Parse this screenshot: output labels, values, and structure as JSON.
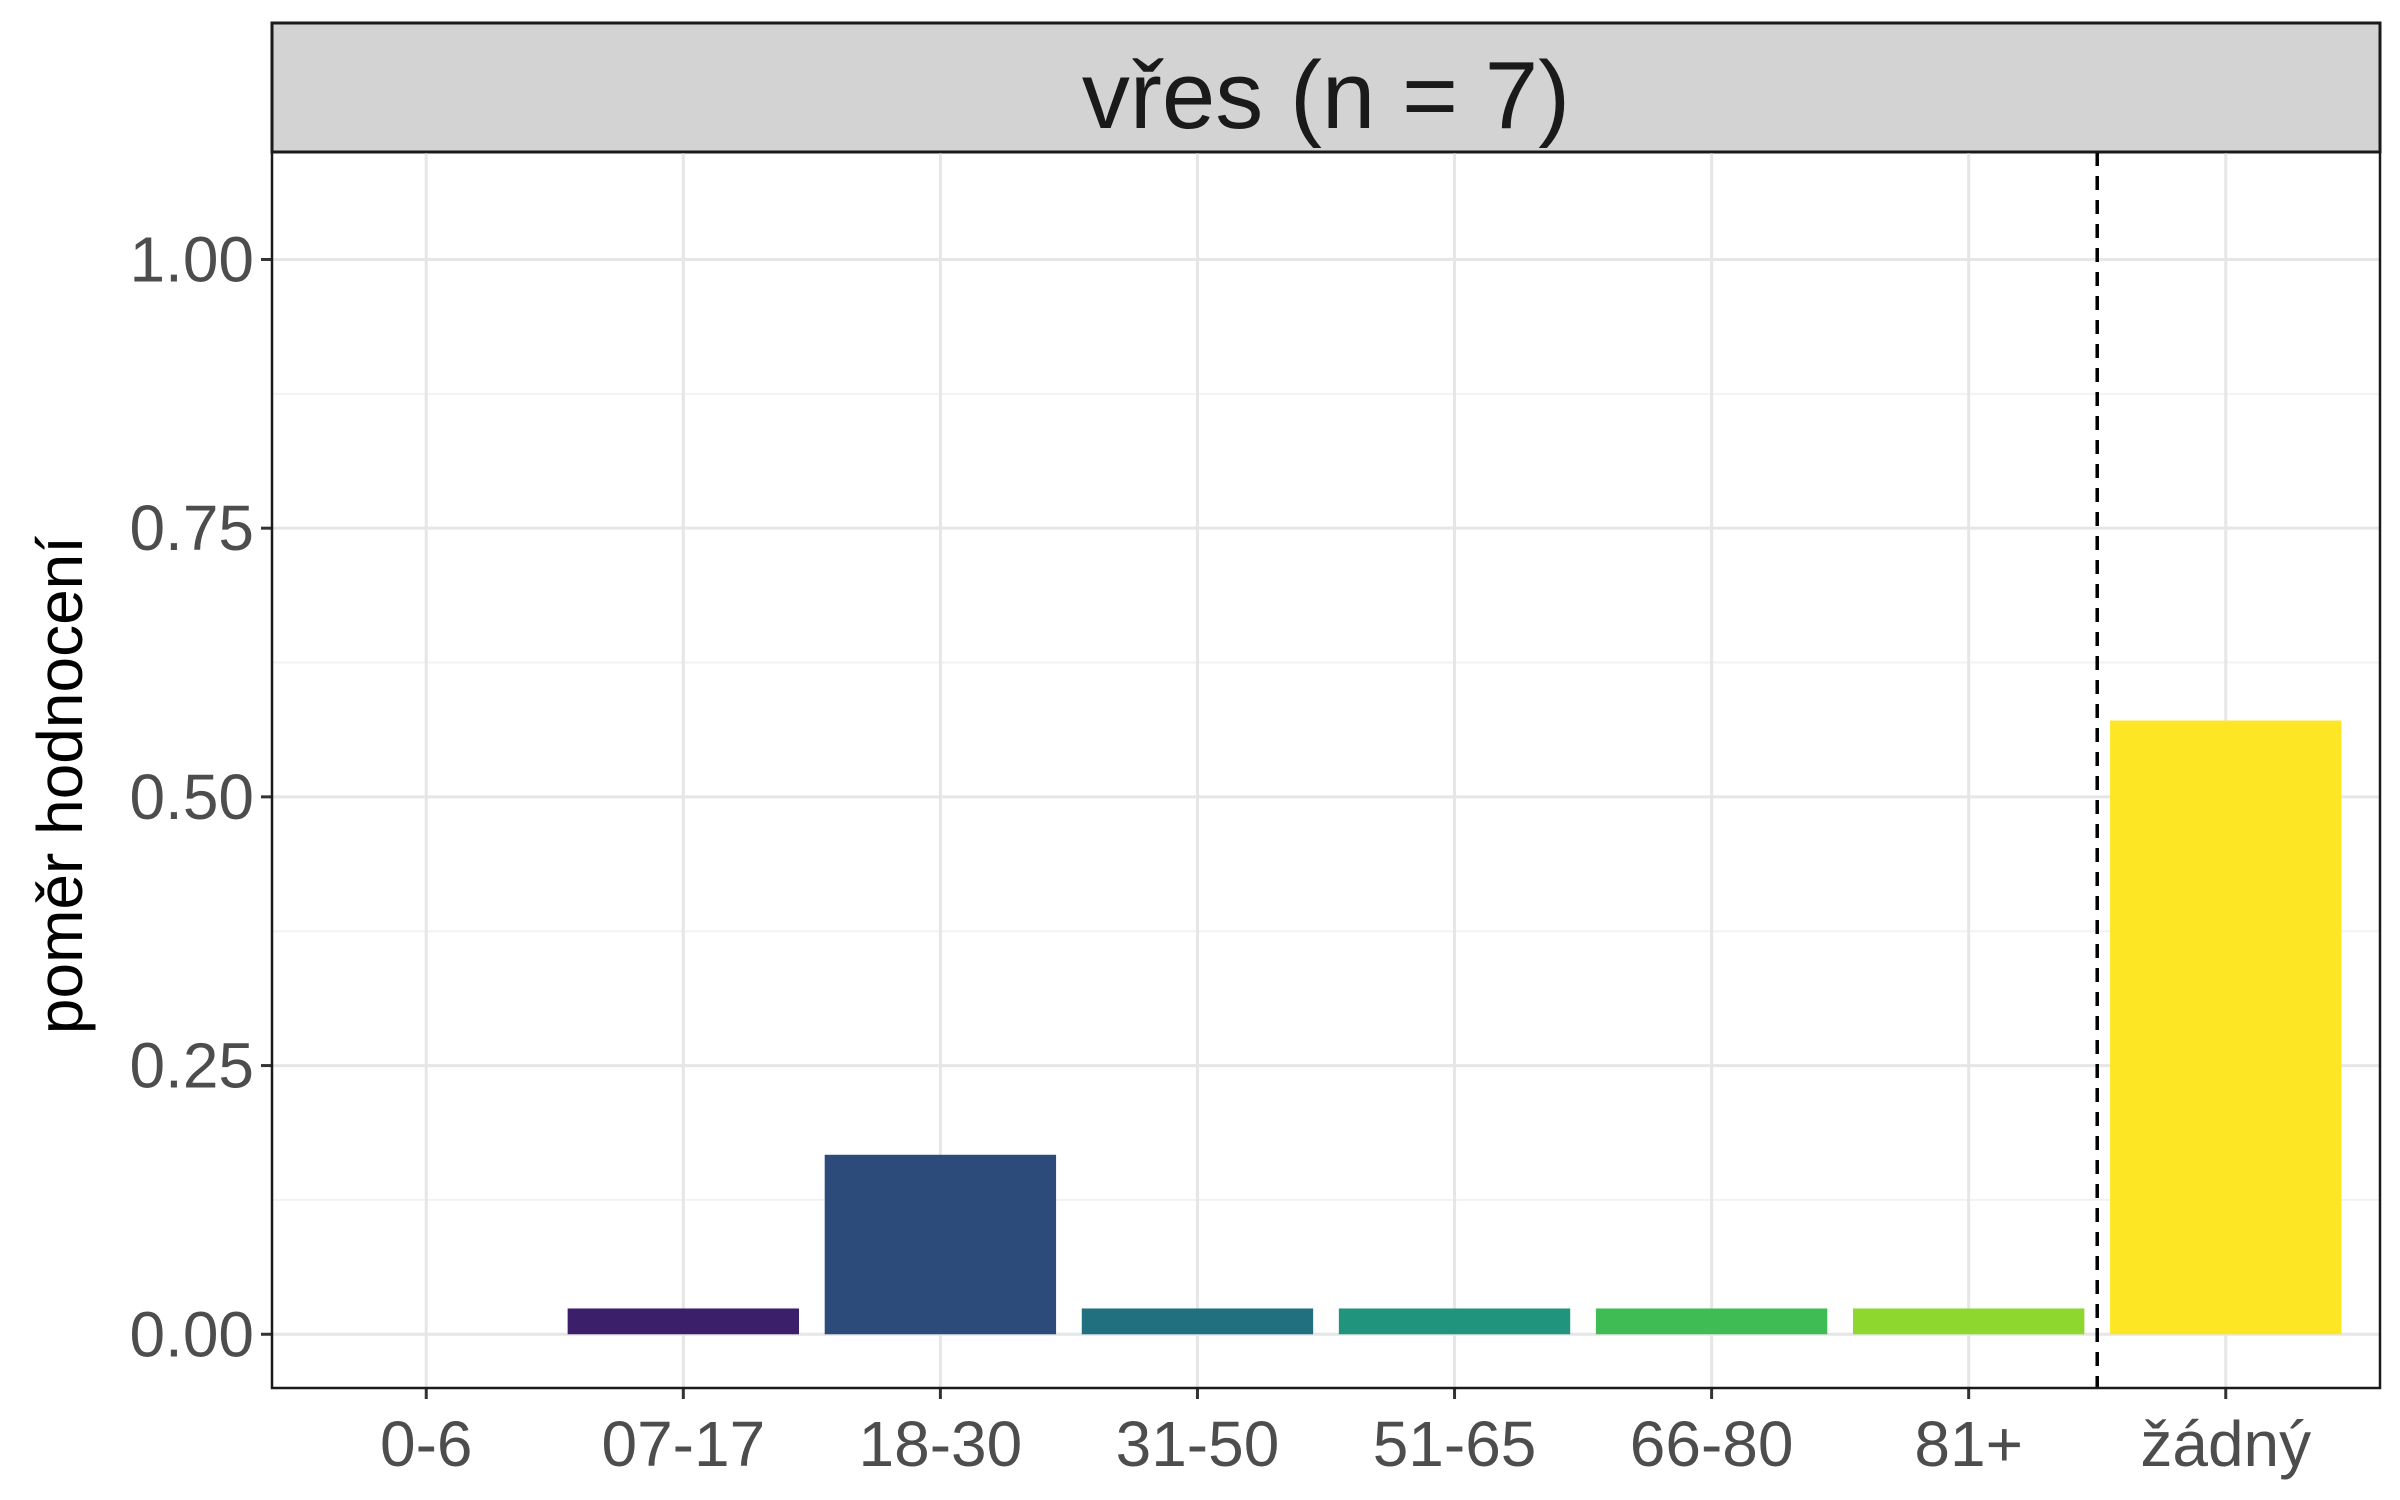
{
  "chart_data": {
    "type": "bar",
    "title": "vřes (n = 7)",
    "xlabel": "",
    "ylabel": "poměr hodnocení",
    "categories": [
      "0-6",
      "07-17",
      "18-30",
      "31-50",
      "51-65",
      "66-80",
      "81+",
      "žádný"
    ],
    "values": [
      0.0,
      0.024,
      0.167,
      0.024,
      0.024,
      0.024,
      0.024,
      0.571
    ],
    "colors": [
      "#440154",
      "#3b1f6b",
      "#2c4b7a",
      "#21707f",
      "#20947d",
      "#40bc55",
      "#8dd72e",
      "#fde725"
    ],
    "ylim": [
      -0.05,
      1.1
    ],
    "yticks": [
      0.0,
      0.25,
      0.5,
      0.75,
      1.0
    ],
    "ytick_labels": [
      "0.00",
      "0.25",
      "0.50",
      "0.75",
      "1.00"
    ],
    "grid": true,
    "reference_line": {
      "after_category": "81+",
      "style": "dashed"
    },
    "legend": "none"
  }
}
